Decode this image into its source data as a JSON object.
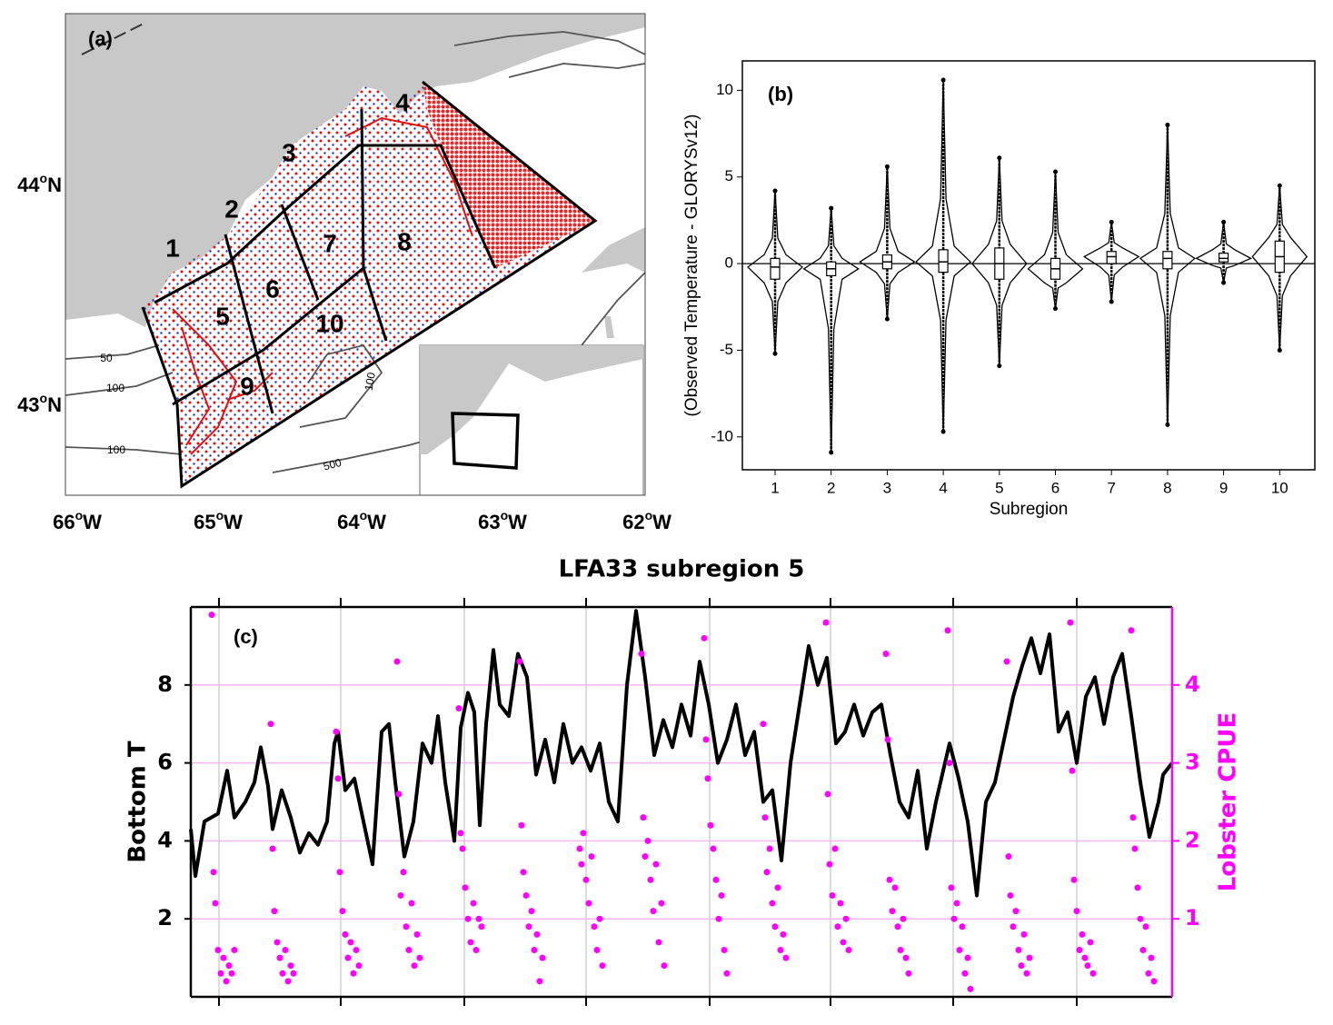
{
  "map": {
    "label": "(a)",
    "degree": "o",
    "north": "N",
    "west": "W",
    "lat_labels": [
      "44",
      "43"
    ],
    "lon_labels": [
      "66",
      "65",
      "64",
      "63",
      "62"
    ],
    "regions": [
      "1",
      "2",
      "3",
      "4",
      "5",
      "6",
      "7",
      "8",
      "9",
      "10"
    ],
    "contour_labels": [
      "50",
      "100",
      "100",
      "500",
      "100"
    ]
  },
  "chart_data": [
    {
      "type": "violin",
      "annotation": "(b)",
      "xlabel": "Subregion",
      "ylabel": "(Observed Temperature - GLORYSv12)",
      "categories": [
        "1",
        "2",
        "3",
        "4",
        "5",
        "6",
        "7",
        "8",
        "9",
        "10"
      ],
      "min": [
        -5.2,
        -10.9,
        -3.2,
        -9.7,
        -5.9,
        -2.6,
        -2.2,
        -9.3,
        -1.1,
        -5.0
      ],
      "q1": [
        -0.9,
        -0.7,
        -0.3,
        -0.5,
        -0.9,
        -0.9,
        0,
        -0.3,
        0.1,
        -0.5
      ],
      "median": [
        -0.2,
        -0.3,
        0.1,
        0.1,
        0,
        -0.3,
        0.4,
        0.3,
        0.3,
        0.4
      ],
      "q3": [
        0.3,
        0.1,
        0.5,
        0.8,
        0.9,
        0.3,
        0.7,
        0.7,
        0.6,
        1.3
      ],
      "max": [
        4.2,
        3.2,
        5.6,
        10.6,
        6.1,
        5.3,
        2.4,
        8.0,
        2.4,
        4.5
      ],
      "ylim": [
        -11.9,
        11.7
      ],
      "yticks": [
        -10,
        -5,
        0,
        5,
        10
      ],
      "hline": 0,
      "color": "#000000"
    },
    {
      "type": "line",
      "title": "LFA33 subregion 5",
      "annotation": "(c)",
      "ylabel": "Bottom T",
      "y2label": "Lobster CPUE",
      "xlim": [
        0,
        108
      ],
      "xticks": [
        3.1,
        16.5,
        30.1,
        43.5,
        57.1,
        70.4,
        83.9,
        97.5
      ],
      "ylim": [
        0,
        10
      ],
      "yticks": [
        2,
        4,
        6,
        8
      ],
      "y2lim": [
        0,
        5
      ],
      "y2ticks": [
        1,
        2,
        3,
        4
      ],
      "grid": true,
      "series": [
        {
          "type": "line",
          "color": "#000000",
          "x": [
            0,
            0.5,
            1.5,
            3,
            4,
            4.8,
            6,
            7,
            7.7,
            8.5,
            9,
            10,
            11,
            12,
            13,
            14,
            15,
            15.8,
            16.2,
            17,
            18,
            19,
            20,
            21,
            21.8,
            22.5,
            23.5,
            24.5,
            25.5,
            26.5,
            27.2,
            28,
            29,
            29.7,
            30.5,
            31.2,
            31.8,
            32.5,
            33.3,
            34,
            35,
            36,
            37,
            38,
            39,
            40,
            41,
            42,
            43,
            44,
            45,
            46,
            47,
            48,
            49,
            50,
            51,
            52,
            53,
            54,
            55,
            56,
            57,
            58,
            59,
            60,
            61,
            62,
            63,
            64,
            65,
            66,
            67,
            68,
            69,
            70,
            71,
            72,
            73,
            74,
            75,
            76,
            77,
            78,
            79,
            80,
            81,
            82,
            83,
            83.5,
            84.5,
            85.5,
            86.5,
            87.5,
            88.5,
            89.5,
            90.5,
            91.5,
            92.5,
            93.5,
            94.5,
            95.5,
            96.5,
            97.5,
            98.5,
            99.5,
            100.5,
            101.5,
            102.5,
            103.5,
            104.5,
            105.5,
            106.5,
            107,
            108
          ],
          "values": [
            4.3,
            3.1,
            4.5,
            4.7,
            5.8,
            4.6,
            5.0,
            5.5,
            6.4,
            5.4,
            4.3,
            5.3,
            4.6,
            3.7,
            4.2,
            3.9,
            4.5,
            6.5,
            6.8,
            5.3,
            5.6,
            4.5,
            3.4,
            6.8,
            7.0,
            5.5,
            3.6,
            4.5,
            6.5,
            6.0,
            7.2,
            5.5,
            4.0,
            6.9,
            7.8,
            7.3,
            4.4,
            7.0,
            8.9,
            7.5,
            7.2,
            8.8,
            8.2,
            5.7,
            6.6,
            5.5,
            7.0,
            6.0,
            6.4,
            5.8,
            6.5,
            5.0,
            4.5,
            8.0,
            9.9,
            8.2,
            6.2,
            7.1,
            6.4,
            7.5,
            6.7,
            8.6,
            7.5,
            6.0,
            6.6,
            7.5,
            6.2,
            6.8,
            5.0,
            5.3,
            3.5,
            6.0,
            7.5,
            9.0,
            8.0,
            8.7,
            6.5,
            6.8,
            7.5,
            6.7,
            7.3,
            7.5,
            6.2,
            5.0,
            4.6,
            5.8,
            3.8,
            5.0,
            6.0,
            6.5,
            5.6,
            4.5,
            2.6,
            5.0,
            5.5,
            6.6,
            7.7,
            8.5,
            9.2,
            8.3,
            9.3,
            6.8,
            7.3,
            6.0,
            7.7,
            8.2,
            7.0,
            8.2,
            8.8,
            7.2,
            5.5,
            4.1,
            5.0,
            5.7,
            6.0
          ]
        },
        {
          "type": "scatter",
          "axis": "y2",
          "color": "#ff00ff",
          "x": [
            2.3,
            2.5,
            2.7,
            3,
            3.3,
            3.6,
            3.9,
            4.2,
            4.5,
            4.8,
            8.8,
            9,
            9.2,
            9.5,
            9.8,
            10.1,
            10.4,
            10.7,
            11,
            11.3,
            16,
            16.2,
            16.4,
            16.7,
            17,
            17.3,
            17.6,
            17.9,
            18.2,
            18.5,
            22.7,
            22.9,
            23.1,
            23.4,
            23.7,
            24,
            24.3,
            24.6,
            24.9,
            25.2,
            29.5,
            29.7,
            29.9,
            30.2,
            30.5,
            30.8,
            31.1,
            31.4,
            31.7,
            32,
            36.2,
            36.4,
            36.6,
            36.9,
            37.2,
            37.5,
            37.8,
            38.1,
            38.4,
            38.7,
            42.8,
            43,
            43.2,
            43.5,
            43.8,
            44.1,
            44.4,
            44.7,
            45,
            45.3,
            49.6,
            49.8,
            50,
            50.3,
            50.6,
            50.9,
            51.2,
            51.5,
            51.8,
            52.1,
            56.5,
            56.7,
            56.9,
            57.2,
            57.5,
            57.8,
            58.1,
            58.4,
            58.7,
            59,
            63,
            63.2,
            63.4,
            63.7,
            64,
            64.3,
            64.6,
            64.9,
            65.2,
            65.5,
            69.9,
            70.1,
            70.3,
            70.6,
            70.9,
            71.2,
            71.5,
            71.8,
            72.1,
            72.4,
            76.5,
            76.7,
            76.9,
            77.2,
            77.5,
            77.8,
            78.1,
            78.4,
            78.7,
            79,
            83.3,
            83.5,
            83.7,
            84,
            84.3,
            84.6,
            84.9,
            85.2,
            85.5,
            85.8,
            89.8,
            90,
            90.2,
            90.5,
            90.8,
            91.1,
            91.4,
            91.7,
            92,
            92.3,
            96.8,
            97,
            97.2,
            97.5,
            97.8,
            98.1,
            98.4,
            98.7,
            99,
            99.3,
            103.5,
            103.7,
            103.9,
            104.2,
            104.5,
            104.8,
            105.1,
            105.4,
            105.7,
            106
          ],
          "values": [
            4.9,
            1.6,
            1.2,
            0.6,
            0.3,
            0.5,
            0.2,
            0.4,
            0.3,
            0.6,
            3.5,
            1.9,
            1.1,
            0.7,
            0.5,
            0.3,
            0.6,
            0.2,
            0.4,
            0.3,
            3.4,
            2.8,
            1.6,
            1.1,
            0.8,
            0.5,
            0.7,
            0.3,
            0.6,
            0.4,
            4.3,
            2.6,
            1.3,
            1.6,
            0.9,
            0.6,
            1.2,
            0.4,
            0.8,
            0.5,
            3.7,
            2.1,
            1.9,
            1.4,
            1.0,
            0.7,
            1.2,
            0.6,
            1.0,
            0.9,
            4.3,
            2.2,
            1.6,
            1.3,
            0.9,
            1.1,
            0.6,
            0.8,
            0.2,
            0.5,
            1.9,
            1.7,
            2.1,
            1.5,
            1.2,
            1.8,
            0.9,
            0.6,
            1.0,
            0.4,
            4.4,
            2.3,
            1.8,
            2.0,
            1.5,
            1.1,
            1.7,
            0.7,
            1.2,
            0.4,
            4.6,
            3.3,
            2.8,
            2.2,
            1.9,
            1.5,
            1.0,
            1.3,
            0.6,
            0.3,
            3.5,
            2.3,
            1.6,
            1.9,
            1.2,
            0.9,
            1.4,
            0.6,
            0.8,
            0.5,
            4.8,
            2.6,
            1.7,
            1.3,
            1.9,
            0.9,
            1.2,
            0.7,
            1.0,
            0.6,
            4.4,
            3.3,
            1.5,
            1.1,
            1.4,
            0.9,
            0.6,
            1.0,
            0.5,
            0.3,
            4.7,
            3.0,
            1.4,
            1.0,
            1.2,
            0.6,
            0.9,
            0.3,
            0.5,
            0.1,
            4.3,
            1.8,
            1.3,
            0.9,
            1.1,
            0.6,
            0.4,
            0.8,
            0.3,
            0.5,
            4.8,
            2.9,
            1.5,
            1.1,
            0.6,
            0.8,
            0.5,
            0.4,
            0.7,
            0.3,
            4.7,
            2.3,
            1.9,
            1.4,
            1.0,
            0.6,
            0.9,
            0.3,
            0.5,
            0.2
          ]
        }
      ]
    }
  ]
}
